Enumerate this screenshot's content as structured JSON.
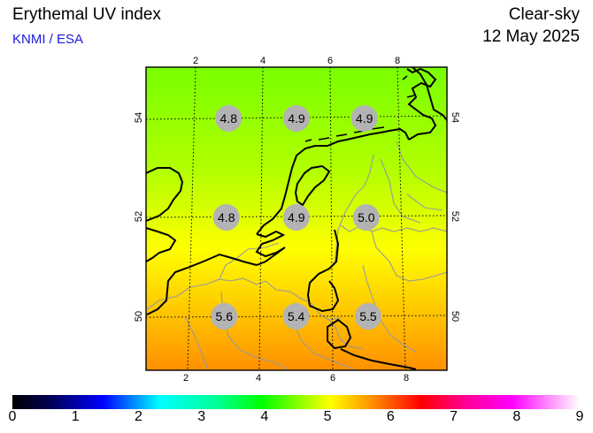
{
  "header": {
    "title": "Erythemal UV index",
    "source": "KNMI / ESA",
    "sky_condition": "Clear-sky",
    "date": "12 May 2025"
  },
  "map": {
    "longitude_ticks": [
      "2",
      "4",
      "6",
      "8"
    ],
    "latitude_ticks": [
      "54",
      "52",
      "50"
    ],
    "uv_points": [
      {
        "lon": 3,
        "lat": 54,
        "value": "4.8"
      },
      {
        "lon": 5,
        "lat": 54,
        "value": "4.9"
      },
      {
        "lon": 7,
        "lat": 54,
        "value": "4.9"
      },
      {
        "lon": 3,
        "lat": 52,
        "value": "4.8"
      },
      {
        "lon": 5,
        "lat": 52,
        "value": "4.9"
      },
      {
        "lon": 7,
        "lat": 52,
        "value": "5.0"
      },
      {
        "lon": 3,
        "lat": 50,
        "value": "5.6"
      },
      {
        "lon": 5,
        "lat": 50,
        "value": "5.4"
      },
      {
        "lon": 7,
        "lat": 50,
        "value": "5.5"
      }
    ],
    "colors": {
      "low": "#7dff00",
      "mid": "#ffff00",
      "high": "#ff9600",
      "marker": "#b3b3b3",
      "border": "#000000"
    }
  },
  "colorbar": {
    "labels": [
      "0",
      "1",
      "2",
      "3",
      "4",
      "5",
      "6",
      "7",
      "8",
      "9"
    ]
  }
}
